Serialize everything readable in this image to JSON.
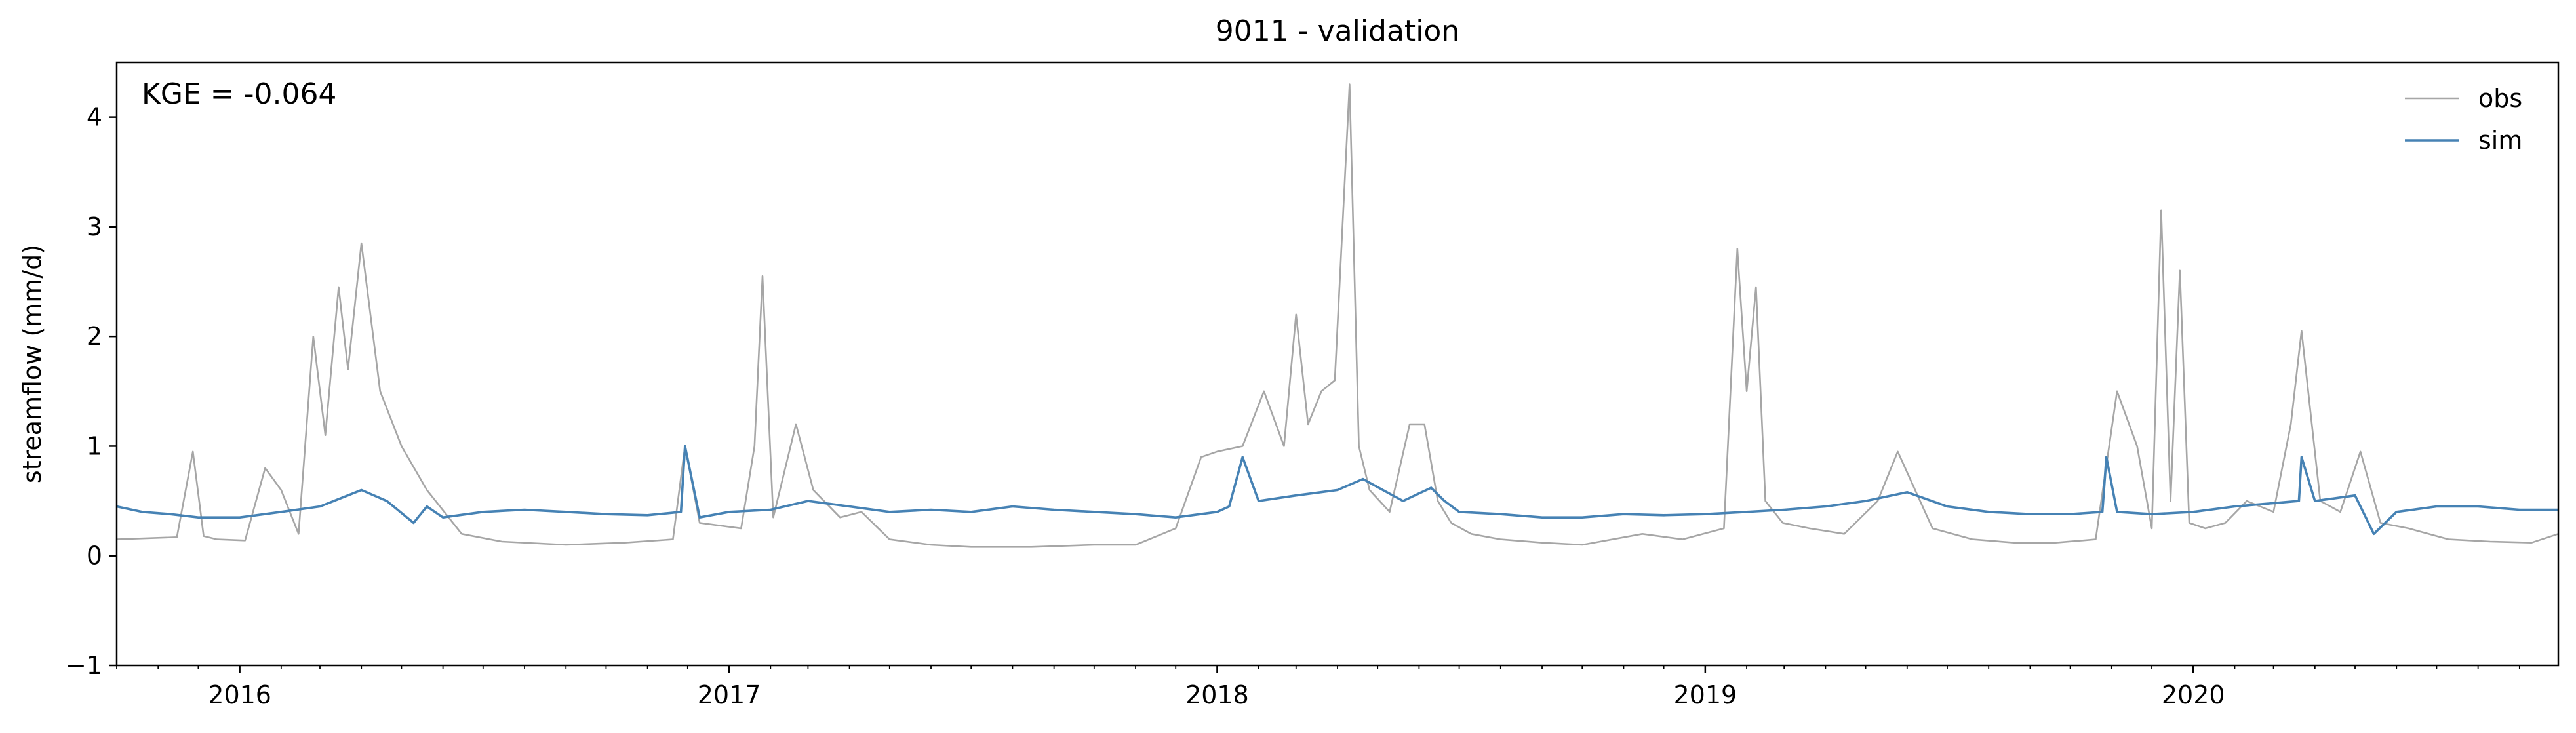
{
  "chart_data": {
    "type": "line",
    "title": "9011 - validation",
    "xlabel": "",
    "ylabel": "streamflow (mm/d)",
    "annotation": "KGE = -0.064",
    "xlim": [
      "2015-10-01",
      "2020-09-30"
    ],
    "ylim": [
      -1,
      4.5
    ],
    "y_ticks": [
      -1,
      0,
      1,
      2,
      3,
      4
    ],
    "x_ticks": [
      {
        "date": "2016-01-01",
        "label": "2016"
      },
      {
        "date": "2017-01-01",
        "label": "2017"
      },
      {
        "date": "2018-01-01",
        "label": "2018"
      },
      {
        "date": "2019-01-01",
        "label": "2019"
      },
      {
        "date": "2020-01-01",
        "label": "2020"
      }
    ],
    "grid": false,
    "legend_position": "top-right",
    "series": [
      {
        "name": "obs",
        "color": "#a6a6a6",
        "x": [
          "2015-10-01",
          "2015-11-15",
          "2015-11-27",
          "2015-12-05",
          "2015-12-15",
          "2016-01-05",
          "2016-01-20",
          "2016-02-01",
          "2016-02-14",
          "2016-02-25",
          "2016-03-05",
          "2016-03-15",
          "2016-03-22",
          "2016-04-01",
          "2016-04-15",
          "2016-05-01",
          "2016-05-20",
          "2016-06-15",
          "2016-07-15",
          "2016-09-01",
          "2016-10-15",
          "2016-11-20",
          "2016-11-29",
          "2016-12-10",
          "2017-01-10",
          "2017-01-20",
          "2017-01-26",
          "2017-02-03",
          "2017-02-20",
          "2017-03-05",
          "2017-03-25",
          "2017-04-10",
          "2017-05-01",
          "2017-06-01",
          "2017-07-01",
          "2017-08-15",
          "2017-10-01",
          "2017-11-01",
          "2017-12-01",
          "2017-12-20",
          "2018-01-01",
          "2018-01-20",
          "2018-02-05",
          "2018-02-20",
          "2018-03-01",
          "2018-03-10",
          "2018-03-20",
          "2018-03-30",
          "2018-04-10",
          "2018-04-17",
          "2018-04-25",
          "2018-05-10",
          "2018-05-25",
          "2018-06-05",
          "2018-06-15",
          "2018-06-25",
          "2018-07-10",
          "2018-08-01",
          "2018-09-01",
          "2018-10-01",
          "2018-11-15",
          "2018-12-15",
          "2019-01-15",
          "2019-01-25",
          "2019-02-01",
          "2019-02-08",
          "2019-02-15",
          "2019-02-28",
          "2019-03-20",
          "2019-04-15",
          "2019-05-10",
          "2019-05-25",
          "2019-06-20",
          "2019-07-20",
          "2019-08-20",
          "2019-09-20",
          "2019-10-20",
          "2019-11-05",
          "2019-11-20",
          "2019-12-01",
          "2019-12-08",
          "2019-12-15",
          "2019-12-22",
          "2019-12-29",
          "2020-01-10",
          "2020-01-25",
          "2020-02-10",
          "2020-03-01",
          "2020-03-14",
          "2020-03-22",
          "2020-04-05",
          "2020-04-20",
          "2020-05-05",
          "2020-05-20",
          "2020-06-10",
          "2020-07-10",
          "2020-08-10",
          "2020-09-10",
          "2020-09-30"
        ],
        "y": [
          0.15,
          0.17,
          0.95,
          0.18,
          0.15,
          0.14,
          0.8,
          0.6,
          0.2,
          2.0,
          1.1,
          2.45,
          1.7,
          2.85,
          1.5,
          1.0,
          0.6,
          0.2,
          0.13,
          0.1,
          0.12,
          0.15,
          1.0,
          0.3,
          0.25,
          1.0,
          2.55,
          0.35,
          1.2,
          0.6,
          0.35,
          0.4,
          0.15,
          0.1,
          0.08,
          0.08,
          0.1,
          0.1,
          0.25,
          0.9,
          0.95,
          1.0,
          1.5,
          1.0,
          2.2,
          1.2,
          1.5,
          1.6,
          4.3,
          1.0,
          0.6,
          0.4,
          1.2,
          1.2,
          0.5,
          0.3,
          0.2,
          0.15,
          0.12,
          0.1,
          0.2,
          0.15,
          0.25,
          2.8,
          1.5,
          2.45,
          0.5,
          0.3,
          0.25,
          0.2,
          0.5,
          0.95,
          0.25,
          0.15,
          0.12,
          0.12,
          0.15,
          1.5,
          1.0,
          0.25,
          3.15,
          0.5,
          2.6,
          0.3,
          0.25,
          0.3,
          0.5,
          0.4,
          1.2,
          2.05,
          0.5,
          0.4,
          0.95,
          0.3,
          0.25,
          0.15,
          0.13,
          0.12,
          0.2
        ]
      },
      {
        "name": "sim",
        "color": "#4682b4",
        "x": [
          "2015-10-01",
          "2015-10-20",
          "2015-11-10",
          "2015-12-01",
          "2016-01-01",
          "2016-02-01",
          "2016-03-01",
          "2016-04-01",
          "2016-04-20",
          "2016-05-10",
          "2016-05-20",
          "2016-06-01",
          "2016-07-01",
          "2016-08-01",
          "2016-09-01",
          "2016-10-01",
          "2016-11-01",
          "2016-11-26",
          "2016-11-29",
          "2016-12-10",
          "2017-01-01",
          "2017-02-01",
          "2017-03-01",
          "2017-04-01",
          "2017-05-01",
          "2017-06-01",
          "2017-07-01",
          "2017-08-01",
          "2017-09-01",
          "2017-10-01",
          "2017-11-01",
          "2017-12-01",
          "2018-01-01",
          "2018-01-10",
          "2018-01-20",
          "2018-02-01",
          "2018-03-01",
          "2018-04-01",
          "2018-04-20",
          "2018-05-05",
          "2018-05-20",
          "2018-06-10",
          "2018-06-20",
          "2018-07-01",
          "2018-08-01",
          "2018-09-01",
          "2018-10-01",
          "2018-11-01",
          "2018-12-01",
          "2019-01-01",
          "2019-02-01",
          "2019-03-01",
          "2019-04-01",
          "2019-05-01",
          "2019-06-01",
          "2019-07-01",
          "2019-08-01",
          "2019-09-01",
          "2019-10-01",
          "2019-10-25",
          "2019-10-28",
          "2019-11-05",
          "2019-12-01",
          "2020-01-01",
          "2020-02-01",
          "2020-03-01",
          "2020-03-20",
          "2020-03-22",
          "2020-04-01",
          "2020-05-01",
          "2020-05-15",
          "2020-06-01",
          "2020-07-01",
          "2020-08-01",
          "2020-09-01",
          "2020-09-30"
        ],
        "y": [
          0.45,
          0.4,
          0.38,
          0.35,
          0.35,
          0.4,
          0.45,
          0.6,
          0.5,
          0.3,
          0.45,
          0.35,
          0.4,
          0.42,
          0.4,
          0.38,
          0.37,
          0.4,
          1.0,
          0.35,
          0.4,
          0.42,
          0.5,
          0.45,
          0.4,
          0.42,
          0.4,
          0.45,
          0.42,
          0.4,
          0.38,
          0.35,
          0.4,
          0.45,
          0.9,
          0.5,
          0.55,
          0.6,
          0.7,
          0.6,
          0.5,
          0.62,
          0.5,
          0.4,
          0.38,
          0.35,
          0.35,
          0.38,
          0.37,
          0.38,
          0.4,
          0.42,
          0.45,
          0.5,
          0.58,
          0.45,
          0.4,
          0.38,
          0.38,
          0.4,
          0.9,
          0.4,
          0.38,
          0.4,
          0.45,
          0.48,
          0.5,
          0.9,
          0.5,
          0.55,
          0.2,
          0.4,
          0.45,
          0.45,
          0.42,
          0.42
        ]
      }
    ]
  }
}
